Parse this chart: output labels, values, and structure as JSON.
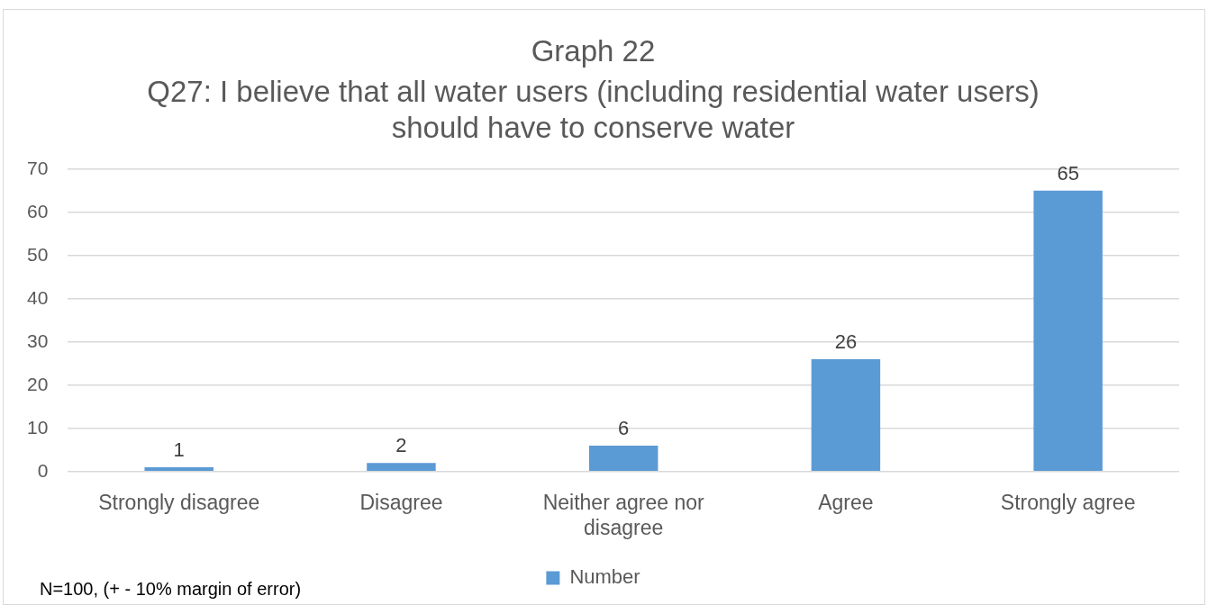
{
  "chart_data": {
    "type": "bar",
    "title": "Graph 22",
    "subtitle": "Q27: I believe that all water users (including residential water users) should have to conserve water",
    "categories": [
      "Strongly disagree",
      "Disagree",
      "Neither agree nor disagree",
      "Agree",
      "Strongly agree"
    ],
    "series": [
      {
        "name": "Number",
        "color": "#5b9bd5",
        "values": [
          1,
          2,
          6,
          26,
          65
        ]
      }
    ],
    "ylim": [
      0,
      70
    ],
    "yticks": [
      0,
      10,
      20,
      30,
      40,
      50,
      60,
      70
    ],
    "grid": "y",
    "legend": "bottom",
    "data_labels": true,
    "annotations": [
      "N=100, (+ - 10% margin of error)"
    ]
  }
}
